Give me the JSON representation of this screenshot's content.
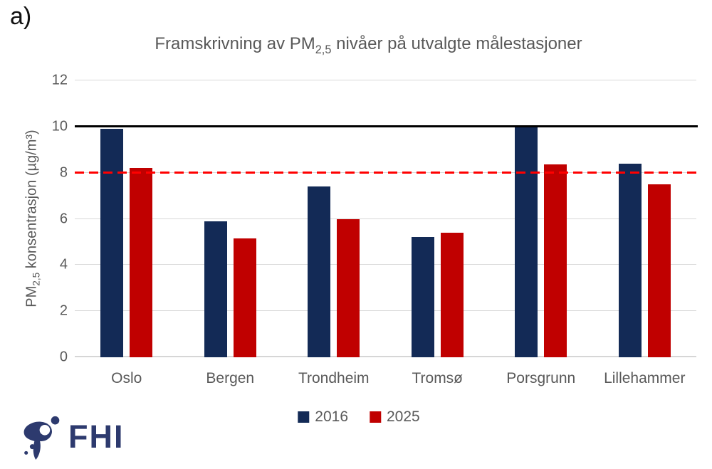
{
  "figure_label": "a)",
  "title": {
    "prefix": "Framskrivning av PM",
    "sub": "2,5",
    "suffix": " nivåer på utvalgte målestasjoner"
  },
  "chart_data": {
    "type": "bar",
    "categories": [
      "Oslo",
      "Bergen",
      "Trondheim",
      "Tromsø",
      "Porsgrunn",
      "Lillehammer"
    ],
    "series": [
      {
        "name": "2016",
        "color": "#132a56",
        "values": [
          9.9,
          5.9,
          7.4,
          5.2,
          9.95,
          8.4
        ]
      },
      {
        "name": "2025",
        "color": "#c00000",
        "values": [
          8.2,
          5.15,
          6.0,
          5.4,
          8.35,
          7.5
        ]
      }
    ],
    "ylabel": {
      "prefix": "PM",
      "sub": "2,5",
      "suffix": " konsentrasjon (µg/m³)"
    },
    "ylim": [
      0,
      12
    ],
    "yticks": [
      0,
      2,
      4,
      6,
      8,
      10,
      12
    ],
    "reference_lines": [
      {
        "value": 10,
        "color": "#000000",
        "style": "solid"
      },
      {
        "value": 8,
        "color": "#ff0000",
        "style": "dashed"
      }
    ],
    "grid": true,
    "legend_position": "bottom"
  },
  "logo": {
    "text": "FHI",
    "color": "#2d3a6e"
  }
}
